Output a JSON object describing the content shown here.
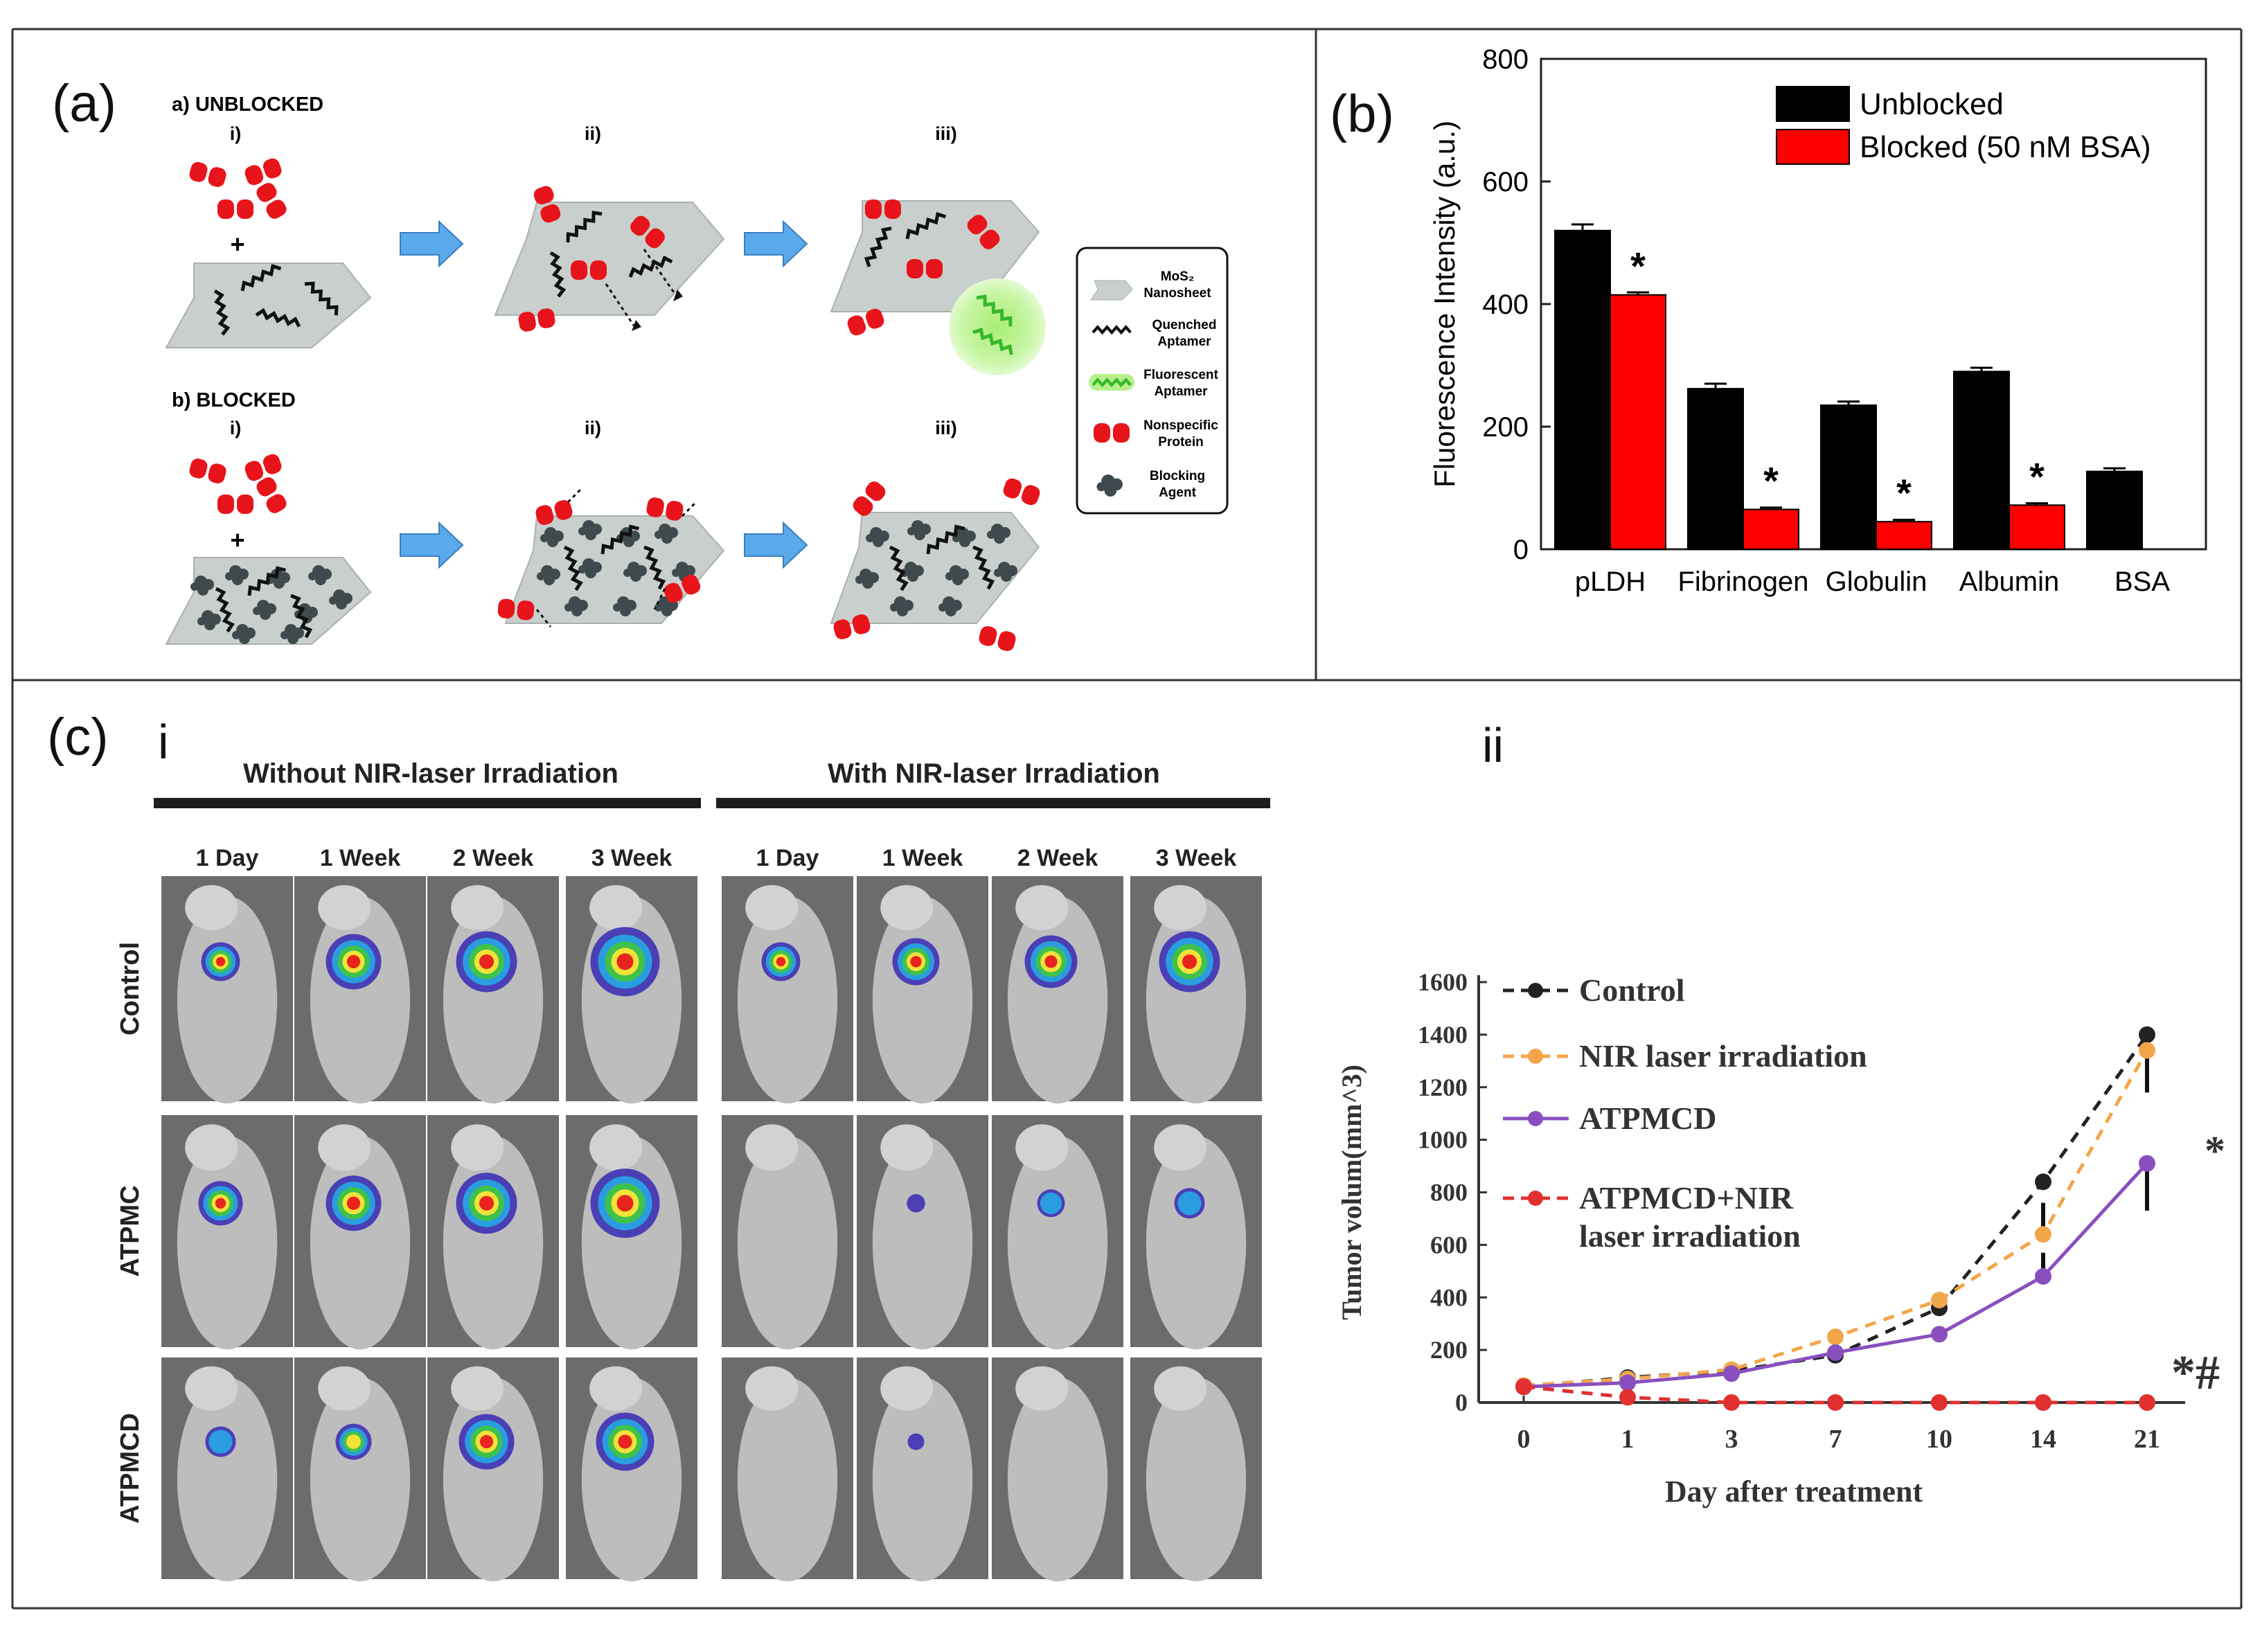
{
  "panels": {
    "a": {
      "label": "(a)"
    },
    "b": {
      "label": "(b)"
    },
    "c": {
      "label": "(c)"
    }
  },
  "schematic": {
    "unblocked_title": "a) UNBLOCKED",
    "blocked_title": "b) BLOCKED",
    "steps": [
      "i)",
      "ii)",
      "iii)"
    ],
    "plus": "+",
    "legend": [
      {
        "lines": [
          "MoS₂",
          "Nanosheet"
        ]
      },
      {
        "lines": [
          "Quenched",
          "Aptamer"
        ]
      },
      {
        "lines": [
          "Fluorescent",
          "Aptamer"
        ]
      },
      {
        "lines": [
          "Nonspecific",
          "Protein"
        ]
      },
      {
        "lines": [
          "Blocking",
          "Agent"
        ]
      }
    ],
    "colors": {
      "sheet": "#c9cfcc",
      "protein": "#e8141b",
      "aptamer_fluor": "#4fcf3a",
      "glow": "#b7f08a",
      "arrow": "#5aa9ea",
      "blocking": "#3e4a4e"
    }
  },
  "imaging": {
    "sub_label_i": "i",
    "sub_label_ii": "ii",
    "group_left": "Without NIR-laser Irradiation",
    "group_right": "With NIR-laser Irradiation",
    "time_points": [
      "1 Day",
      "1 Week",
      "2 Week",
      "3 Week"
    ],
    "rows": [
      "Control",
      "ATPMC",
      "ATPMCD"
    ],
    "signal_levels": [
      [
        0.45,
        0.75,
        0.85,
        1.0,
        0.45,
        0.6,
        0.7,
        0.85
      ],
      [
        0.55,
        0.75,
        0.85,
        1.0,
        0.0,
        0.08,
        0.25,
        0.3
      ],
      [
        0.3,
        0.4,
        0.75,
        0.8,
        0.0,
        0.05,
        0.0,
        0.0
      ]
    ]
  },
  "chart_data": [
    {
      "type": "bar",
      "panel": "b",
      "title": "",
      "xlabel": "",
      "ylabel": "Fluorescence Intensity (a.u.)",
      "ylim": [
        0,
        800
      ],
      "yticks": [
        0,
        200,
        400,
        600,
        800
      ],
      "categories": [
        "pLDH",
        "Fibrinogen",
        "Globulin",
        "Albumin",
        "BSA"
      ],
      "series": [
        {
          "name": "Unblocked",
          "color": "#000000",
          "values": [
            520,
            262,
            235,
            290,
            127
          ],
          "errors": [
            10,
            8,
            6,
            6,
            5
          ]
        },
        {
          "name": "Blocked (50 nM BSA)",
          "color": "#ff0000",
          "values": [
            415,
            65,
            45,
            72,
            null
          ],
          "errors": [
            4,
            3,
            3,
            3,
            null
          ]
        }
      ],
      "significance_marker": "*",
      "significant_categories": [
        "pLDH",
        "Fibrinogen",
        "Globulin",
        "Albumin"
      ],
      "legend_position": "top-right"
    },
    {
      "type": "line",
      "panel": "c-ii",
      "title": "",
      "xlabel": "Day after treatment",
      "ylabel": "Tumor volum(mm^3)",
      "categories": [
        "0",
        "1",
        "3",
        "7",
        "10",
        "14",
        "21"
      ],
      "ylim": [
        0,
        1600
      ],
      "yticks": [
        0,
        200,
        400,
        600,
        800,
        1000,
        1200,
        1400,
        1600
      ],
      "series": [
        {
          "name": "Control",
          "color": "#222222",
          "dash": "dashed",
          "values": [
            60,
            95,
            120,
            180,
            360,
            840,
            1400
          ],
          "errors": [
            0,
            0,
            0,
            80,
            0,
            0,
            220
          ]
        },
        {
          "name": "NIR laser irradiation",
          "color": "#f2a64a",
          "dash": "dashed",
          "values": [
            65,
            90,
            125,
            250,
            390,
            640,
            1340
          ],
          "errors": [
            0,
            0,
            0,
            0,
            0,
            120,
            0
          ]
        },
        {
          "name": "ATPMCD",
          "color": "#8a4fbf",
          "dash": "solid",
          "values": [
            60,
            75,
            110,
            190,
            260,
            480,
            910
          ],
          "errors": [
            0,
            0,
            0,
            0,
            0,
            90,
            180
          ]
        },
        {
          "name": "ATPMCD+NIR laser irradiation",
          "legend_lines": [
            "ATPMCD+NIR",
            "laser irradiation"
          ],
          "color": "#e03030",
          "dash": "dashed",
          "values": [
            60,
            20,
            0,
            0,
            0,
            0,
            0
          ],
          "errors": [
            0,
            0,
            0,
            0,
            0,
            0,
            0
          ]
        }
      ],
      "annotations": [
        "*",
        "*#"
      ],
      "legend_position": "top-left"
    }
  ]
}
